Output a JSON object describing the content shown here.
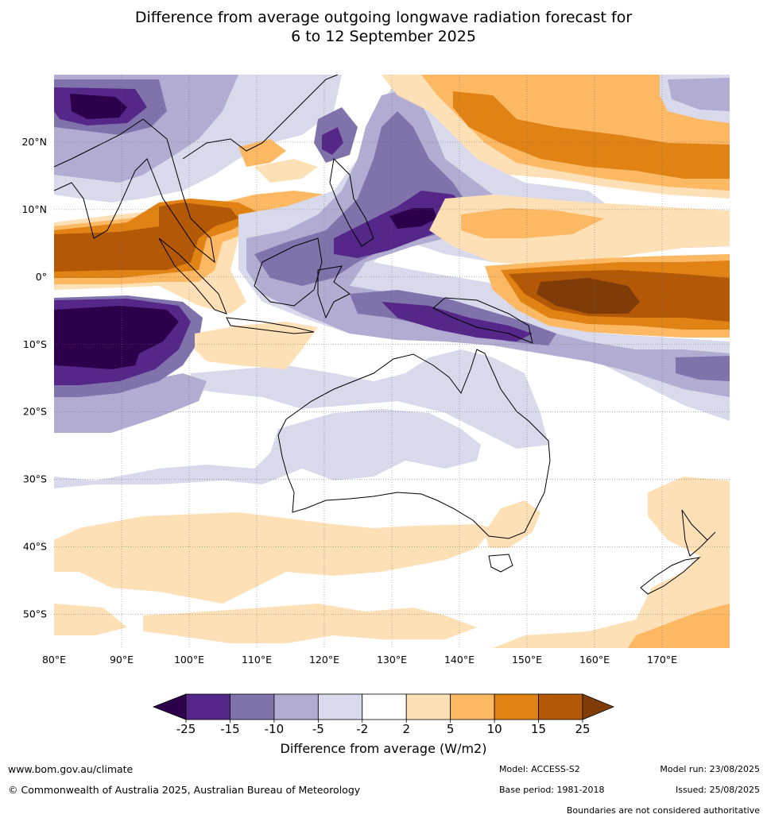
{
  "title": {
    "line1": "Difference from average outgoing longwave radiation forecast for",
    "line2": "6 to 12 September 2025"
  },
  "axes": {
    "lon_labels": [
      "80°E",
      "90°E",
      "100°E",
      "110°E",
      "120°E",
      "130°E",
      "140°E",
      "150°E",
      "160°E",
      "170°E"
    ],
    "lat_labels": [
      "20°N",
      "10°N",
      "0°",
      "10°S",
      "20°S",
      "30°S",
      "40°S",
      "50°S"
    ],
    "lon_range": [
      80,
      180
    ],
    "lat_range": [
      -55,
      30
    ]
  },
  "colorbar": {
    "title": "Difference from average (W/m2)",
    "ticks": [
      "-25",
      "-15",
      "-10",
      "-5",
      "-2",
      "2",
      "5",
      "10",
      "15",
      "25"
    ],
    "colors": [
      "#2d004b",
      "#542788",
      "#8073ac",
      "#b2abd2",
      "#d8daeb",
      "#ffffff",
      "#fee0b6",
      "#fdb863",
      "#e08214",
      "#b35806",
      "#7f3b08"
    ]
  },
  "regions": [
    {
      "level": "-5",
      "color": "#d8daeb"
    },
    {
      "level": "-10",
      "color": "#b2abd2"
    },
    {
      "level": "-15",
      "color": "#8073ac"
    },
    {
      "level": "-25",
      "color": "#542788"
    },
    {
      "level": "<-25",
      "color": "#2d004b"
    },
    {
      "level": "5",
      "color": "#fee0b6"
    },
    {
      "level": "10",
      "color": "#fdb863"
    },
    {
      "level": "15",
      "color": "#e08214"
    },
    {
      "level": "25",
      "color": "#b35806"
    },
    {
      "level": ">25",
      "color": "#7f3b08"
    }
  ],
  "footer": {
    "website": "www.bom.gov.au/climate",
    "copyright": "© Commonwealth of Australia 2025, Australian Bureau of Meteorology",
    "model": "Model: ACCESS-S2",
    "base_period": "Base period: 1981-2018",
    "model_run": "Model run: 23/08/2025",
    "issued": "Issued: 25/08/2025",
    "disclaimer": "Boundaries are not considered authoritative"
  }
}
